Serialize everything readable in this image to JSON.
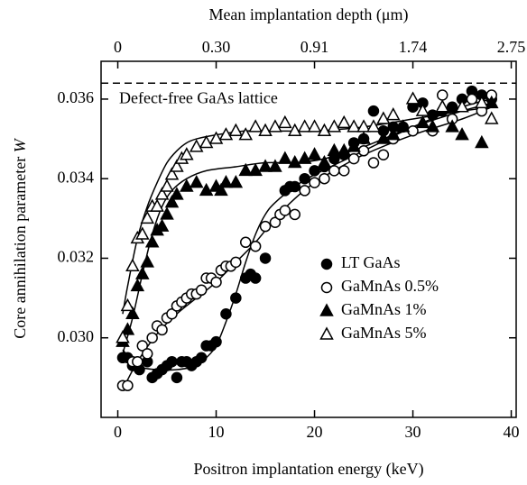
{
  "chart_data": {
    "type": "scatter",
    "xlabel": "Positron implantation energy (keV)",
    "ylabel": "Core annihilation parameter",
    "ylabel_symbol": "W",
    "x2label": "Mean implantation depth (μm)",
    "xlim": [
      -1.7,
      40.5
    ],
    "ylim": [
      0.028,
      0.03695
    ],
    "xticks": [
      0,
      10,
      20,
      30,
      40
    ],
    "yticks": [
      {
        "value": 0.03,
        "label": "0.030"
      },
      0.032,
      0.034,
      0.036
    ],
    "x2ticks": [
      {
        "value": 0,
        "label": "0"
      },
      {
        "value": 10,
        "label": "0.30"
      },
      {
        "value": 20,
        "label": "0.91"
      },
      {
        "value": 30,
        "label": "1.74"
      },
      {
        "value": 40,
        "label": "2.75"
      }
    ],
    "reference_line": {
      "label": "Defect-free GaAs lattice",
      "value": 0.0364
    },
    "series": [
      {
        "name": "LT GaAs",
        "color": "#000000",
        "marker": "circle",
        "filled": true,
        "x": [
          0.5,
          1,
          1.5,
          2.2,
          3,
          3.5,
          4,
          4.5,
          5,
          5.5,
          6,
          6.5,
          7,
          7.5,
          8,
          8.5,
          9,
          9.5,
          10,
          11,
          12,
          13,
          13.5,
          14,
          15,
          17,
          17.5,
          18,
          19,
          20,
          21,
          22,
          23,
          24,
          25,
          26,
          27,
          28,
          29,
          30,
          31,
          32,
          33,
          34,
          35,
          36,
          37,
          38
        ],
        "values": [
          0.0295,
          0.0295,
          0.0293,
          0.0292,
          0.0294,
          0.029,
          0.0291,
          0.0292,
          0.0293,
          0.0294,
          0.029,
          0.0294,
          0.0294,
          0.0293,
          0.0294,
          0.0295,
          0.0298,
          0.0298,
          0.0299,
          0.0306,
          0.031,
          0.0315,
          0.0316,
          0.0315,
          0.032,
          0.0337,
          0.0338,
          0.0338,
          0.034,
          0.0342,
          0.0343,
          0.0345,
          0.0346,
          0.0349,
          0.035,
          0.0357,
          0.0352,
          0.0353,
          0.0353,
          0.0358,
          0.0359,
          0.0356,
          0.0357,
          0.0358,
          0.036,
          0.0362,
          0.0361,
          0.036
        ]
      },
      {
        "name": "GaMnAs 0.5%",
        "color": "#000000",
        "marker": "circle",
        "filled": false,
        "x": [
          0.5,
          1,
          1.5,
          2,
          2.5,
          3,
          3.5,
          4,
          4.5,
          5,
          5.5,
          6,
          6.5,
          7,
          7.5,
          8,
          8.5,
          9,
          9.5,
          10,
          10.5,
          11,
          11.5,
          12,
          13,
          14,
          15,
          16,
          16.5,
          17,
          18,
          19,
          20,
          21,
          22,
          23,
          24,
          25,
          26,
          27,
          28,
          30,
          32,
          33,
          34,
          36,
          37,
          38
        ],
        "values": [
          0.0288,
          0.0288,
          0.0294,
          0.0294,
          0.0298,
          0.0296,
          0.03,
          0.0303,
          0.0302,
          0.0305,
          0.0306,
          0.0308,
          0.0309,
          0.031,
          0.0311,
          0.0311,
          0.0312,
          0.0315,
          0.0315,
          0.0314,
          0.0317,
          0.0318,
          0.0318,
          0.0319,
          0.0324,
          0.0323,
          0.0328,
          0.0329,
          0.0331,
          0.0332,
          0.0331,
          0.0337,
          0.0339,
          0.034,
          0.0342,
          0.0342,
          0.0345,
          0.0347,
          0.0344,
          0.0346,
          0.035,
          0.0352,
          0.0352,
          0.0361,
          0.0355,
          0.036,
          0.0357,
          0.0361
        ]
      },
      {
        "name": "GaMnAs 1%",
        "color": "#000000",
        "marker": "triangle",
        "filled": true,
        "x": [
          0.5,
          1,
          1.5,
          2,
          2.5,
          3,
          3.5,
          4,
          4.5,
          5,
          5.5,
          6,
          7,
          8,
          9,
          10,
          10.5,
          11,
          12,
          13,
          14,
          15,
          16,
          17,
          18,
          19,
          20,
          21,
          22,
          23,
          24,
          25,
          27,
          28,
          29,
          31,
          32,
          34,
          35,
          37,
          38
        ],
        "values": [
          0.0299,
          0.0302,
          0.0306,
          0.0313,
          0.0316,
          0.0319,
          0.0324,
          0.0327,
          0.0328,
          0.0331,
          0.0334,
          0.0336,
          0.0338,
          0.0339,
          0.0337,
          0.0338,
          0.0337,
          0.0339,
          0.0339,
          0.0342,
          0.0342,
          0.0343,
          0.0343,
          0.0345,
          0.0344,
          0.0345,
          0.0346,
          0.0344,
          0.0347,
          0.0347,
          0.0348,
          0.035,
          0.035,
          0.0351,
          0.0353,
          0.0354,
          0.0353,
          0.0353,
          0.0351,
          0.0349,
          0.0359
        ]
      },
      {
        "name": "GaMnAs 5%",
        "color": "#000000",
        "marker": "triangle",
        "filled": false,
        "x": [
          0.5,
          1,
          1.5,
          2,
          2.5,
          3,
          3.5,
          4,
          4.5,
          5,
          5.5,
          6,
          6.5,
          7,
          8,
          9,
          10,
          11,
          12,
          13,
          14,
          15,
          16,
          17,
          18,
          19,
          20,
          21,
          22,
          23,
          24,
          25,
          26,
          27,
          28,
          30,
          31,
          33,
          35,
          37,
          38
        ],
        "values": [
          0.03,
          0.0308,
          0.0318,
          0.0325,
          0.0326,
          0.033,
          0.0333,
          0.0333,
          0.0336,
          0.0338,
          0.0341,
          0.0343,
          0.0345,
          0.0346,
          0.0348,
          0.0349,
          0.035,
          0.0351,
          0.0352,
          0.0351,
          0.0353,
          0.0352,
          0.0353,
          0.0354,
          0.0352,
          0.0353,
          0.0353,
          0.0352,
          0.0353,
          0.0354,
          0.0353,
          0.0353,
          0.0353,
          0.0355,
          0.0356,
          0.036,
          0.0357,
          0.0358,
          0.0358,
          0.0359,
          0.0355
        ]
      }
    ],
    "fits": [
      {
        "x": [
          0.5,
          2,
          4,
          6,
          8,
          9,
          10,
          11,
          12,
          13,
          14,
          15,
          16,
          18,
          20,
          25,
          30,
          35,
          38
        ],
        "values": [
          0.0297,
          0.0293,
          0.0292,
          0.0292,
          0.0293,
          0.0295,
          0.0298,
          0.0304,
          0.0311,
          0.0319,
          0.0326,
          0.0331,
          0.0334,
          0.0338,
          0.0341,
          0.0347,
          0.0353,
          0.0358,
          0.036
        ]
      },
      {
        "x": [
          0.5,
          2,
          4,
          6,
          8,
          10,
          12,
          14,
          16,
          18,
          20,
          22,
          25,
          30,
          35,
          38
        ],
        "values": [
          0.0287,
          0.0294,
          0.0301,
          0.0306,
          0.031,
          0.0314,
          0.0319,
          0.0324,
          0.033,
          0.0335,
          0.0339,
          0.0342,
          0.0346,
          0.0351,
          0.0355,
          0.0358
        ]
      },
      {
        "x": [
          0.5,
          1.5,
          2.5,
          3.5,
          4.5,
          5.5,
          7,
          9,
          12,
          15,
          18,
          21,
          25,
          30,
          35,
          38
        ],
        "values": [
          0.0296,
          0.0305,
          0.0316,
          0.0326,
          0.0333,
          0.0337,
          0.034,
          0.0342,
          0.0343,
          0.0344,
          0.0344,
          0.0345,
          0.0348,
          0.0353,
          0.0357,
          0.0359
        ]
      },
      {
        "x": [
          0.5,
          1,
          2,
          3,
          4,
          5,
          6,
          7,
          8,
          10,
          13,
          16,
          20,
          25,
          30,
          35,
          38
        ],
        "values": [
          0.0306,
          0.0313,
          0.0325,
          0.0333,
          0.0339,
          0.0344,
          0.0347,
          0.0349,
          0.035,
          0.0351,
          0.0352,
          0.0352,
          0.0352,
          0.0353,
          0.0355,
          0.0357,
          0.0358
        ]
      }
    ]
  }
}
